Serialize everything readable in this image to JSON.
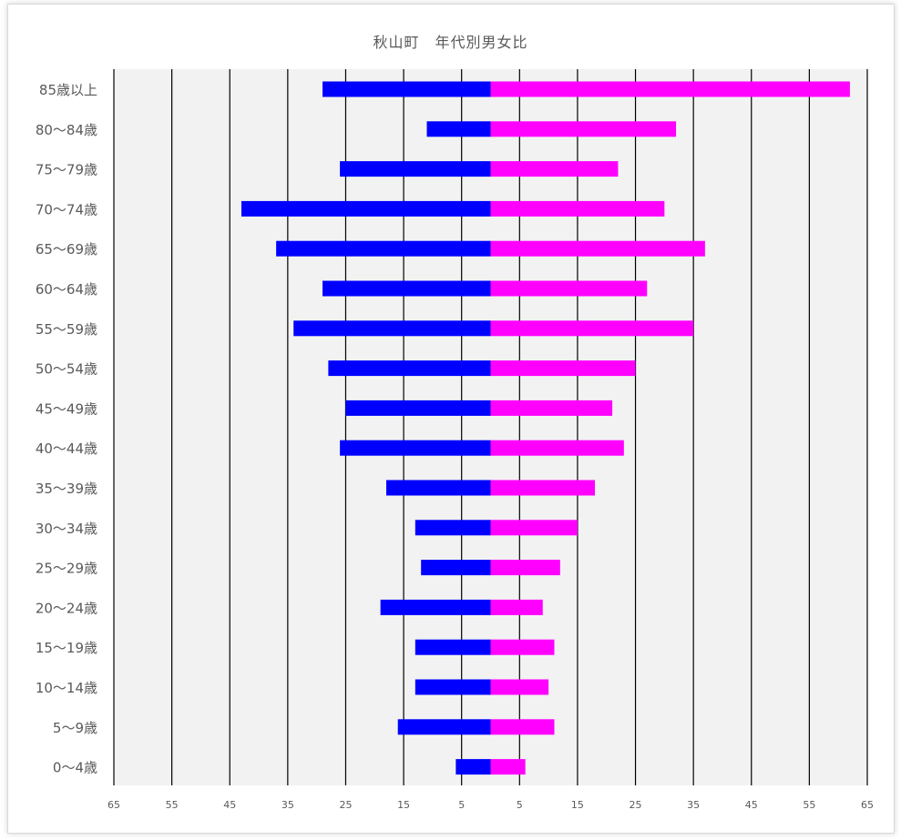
{
  "chart_data": {
    "type": "bar",
    "orientation": "horizontal",
    "layout": "population-pyramid",
    "title": "秋山町　年代別男女比",
    "categories": [
      "85歳以上",
      "80〜84歳",
      "75〜79歳",
      "70〜74歳",
      "65〜69歳",
      "60〜64歳",
      "55〜59歳",
      "50〜54歳",
      "45〜49歳",
      "40〜44歳",
      "35〜39歳",
      "30〜34歳",
      "25〜29歳",
      "20〜24歳",
      "15〜19歳",
      "10〜14歳",
      "5〜9歳",
      "0〜4歳"
    ],
    "series": [
      {
        "side": "left",
        "color": "#0000ff",
        "values": [
          29,
          11,
          26,
          43,
          37,
          29,
          34,
          28,
          25,
          26,
          18,
          13,
          12,
          19,
          13,
          13,
          16,
          6
        ]
      },
      {
        "side": "right",
        "color": "#ff00ff",
        "values": [
          62,
          32,
          22,
          30,
          37,
          27,
          35,
          25,
          21,
          23,
          18,
          15,
          12,
          9,
          11,
          10,
          11,
          6
        ]
      }
    ],
    "xlim": [
      -65,
      65
    ],
    "x_ticks": [
      -65,
      -55,
      -45,
      -35,
      -25,
      -15,
      -5,
      5,
      15,
      25,
      35,
      45,
      55,
      65
    ],
    "x_tick_labels": [
      "65",
      "55",
      "45",
      "35",
      "25",
      "15",
      "5",
      "5",
      "15",
      "25",
      "35",
      "45",
      "55",
      "65"
    ],
    "grid": true,
    "plot_background": "#f2f2f2",
    "legend": "none"
  }
}
